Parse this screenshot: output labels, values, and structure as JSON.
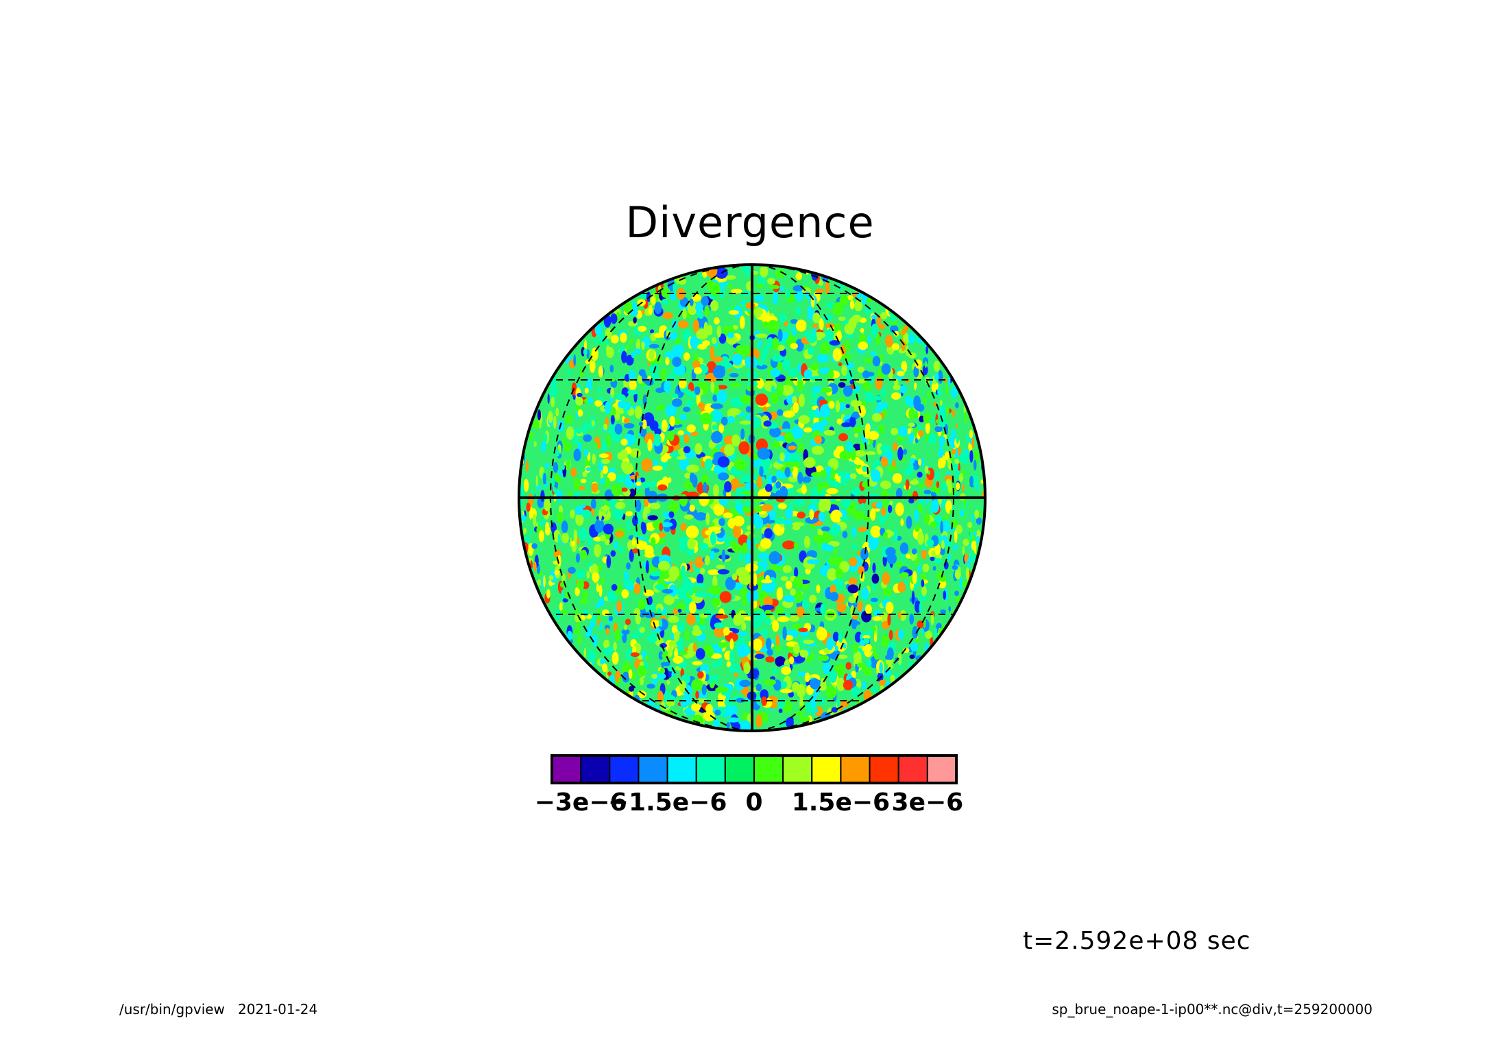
{
  "title": "Divergence",
  "time_label": "t=2.592e+08 sec",
  "footer": {
    "program": "/usr/bin/gpview",
    "date": "2021-01-24",
    "source": "sp_brue_noape-1-ip00**.nc@div,t=259200000"
  },
  "map": {
    "projection": "orthographic",
    "field": "div",
    "grid": "dashed graticule, solid equator and central meridian"
  },
  "colorbar": {
    "colors": [
      "#7f00a8",
      "#0a00b0",
      "#0a2cff",
      "#0a8cff",
      "#00eeff",
      "#00ffb0",
      "#00f060",
      "#40ff10",
      "#a0ff20",
      "#ffff00",
      "#ff9900",
      "#ff3300",
      "#ff3030",
      "#ff9999"
    ],
    "labels": [
      {
        "text": "−3e−6",
        "value": -3e-06
      },
      {
        "text": "−1.5e−6",
        "value": -1.5e-06
      },
      {
        "text": "0",
        "value": 0
      },
      {
        "text": "1.5e−6",
        "value": 1.5e-06
      },
      {
        "text": "3e−6",
        "value": 3e-06
      }
    ]
  }
}
